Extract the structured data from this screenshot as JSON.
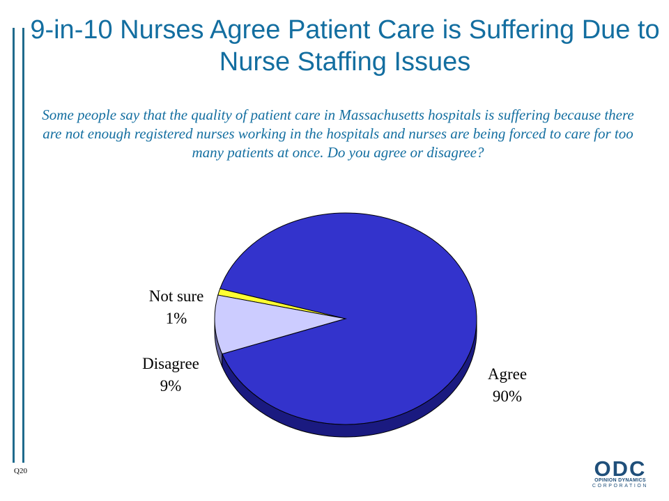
{
  "title": "9-in-10 Nurses Agree Patient Care is Suffering Due to Nurse Staffing Issues",
  "question": "Some people say that the quality of patient care in Massachusetts hospitals is suffering because there are not enough registered nurses working in the hospitals and nurses are being forced to care for too many patients at once. Do you agree or disagree?",
  "question_code": "Q20",
  "logo": {
    "mark": "ODC",
    "line1": "OPINION DYNAMICS",
    "line2": "CORPORATION"
  },
  "chart_data": {
    "type": "pie",
    "style": "3d",
    "slices": [
      {
        "label": "Agree",
        "value": 90,
        "value_label": "90%",
        "color": "#3333cc",
        "side_color": "#1a1a80"
      },
      {
        "label": "Disagree",
        "value": 9,
        "value_label": "9%",
        "color": "#ccccff",
        "side_color": "#6666a0"
      },
      {
        "label": "Not sure",
        "value": 1,
        "value_label": "1%",
        "color": "#ffff33",
        "side_color": "#a0a020"
      }
    ],
    "legend": "none"
  }
}
